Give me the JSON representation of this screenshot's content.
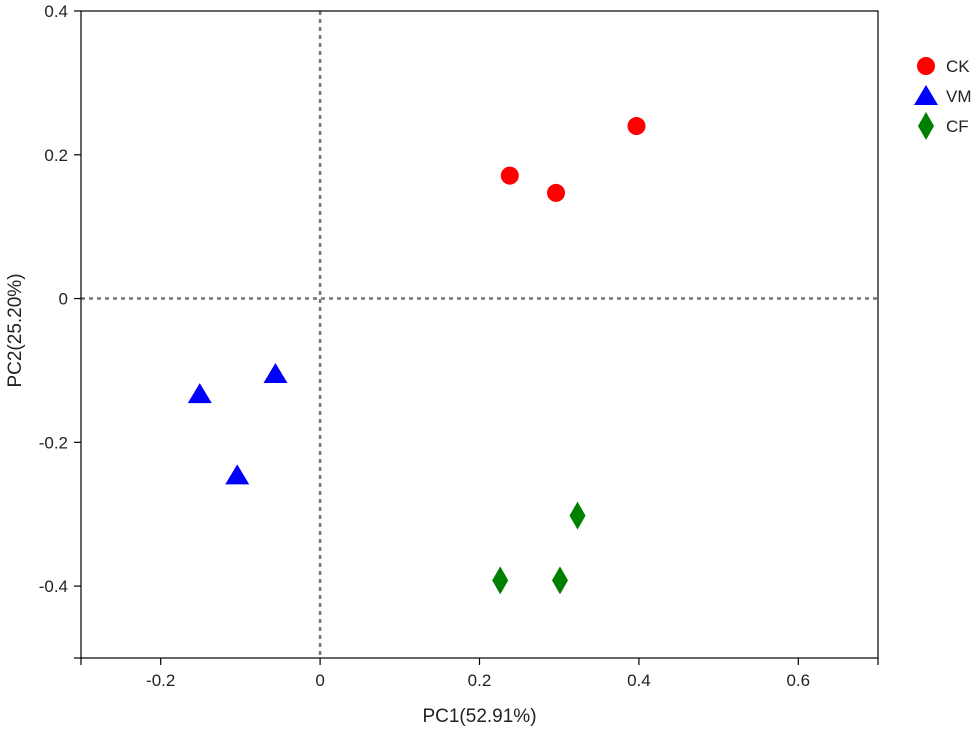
{
  "chart_data": {
    "type": "scatter",
    "title": "",
    "xlabel": "PC1(52.91%)",
    "ylabel": "PC2(25.20%)",
    "xlim": [
      -0.3,
      0.7
    ],
    "ylim": [
      -0.5,
      0.4
    ],
    "xticks": [
      {
        "value": -0.2,
        "label": "-0.2"
      },
      {
        "value": 0,
        "label": "0"
      },
      {
        "value": 0.2,
        "label": "0.2"
      },
      {
        "value": 0.4,
        "label": "0.4"
      },
      {
        "value": 0.6,
        "label": "0.6"
      }
    ],
    "yticks": [
      {
        "value": 0.4,
        "label": "0.4"
      },
      {
        "value": 0.2,
        "label": "0.2"
      },
      {
        "value": 0,
        "label": "0"
      },
      {
        "value": -0.2,
        "label": "-0.2"
      },
      {
        "value": -0.4,
        "label": "-0.4"
      }
    ],
    "reference_lines": {
      "x": 0,
      "y": 0,
      "style": "dotted"
    },
    "grid": false,
    "legend_position": "right",
    "series": [
      {
        "name": "CK",
        "marker": "circle",
        "color": "#ff0000",
        "points": [
          {
            "x": 0.238,
            "y": 0.171
          },
          {
            "x": 0.296,
            "y": 0.147
          },
          {
            "x": 0.397,
            "y": 0.24
          }
        ]
      },
      {
        "name": "VM",
        "marker": "triangle",
        "color": "#0000ff",
        "points": [
          {
            "x": -0.056,
            "y": -0.105
          },
          {
            "x": -0.151,
            "y": -0.133
          },
          {
            "x": -0.104,
            "y": -0.246
          }
        ]
      },
      {
        "name": "CF",
        "marker": "diamond",
        "color": "#008000",
        "points": [
          {
            "x": 0.323,
            "y": -0.302
          },
          {
            "x": 0.226,
            "y": -0.392
          },
          {
            "x": 0.301,
            "y": -0.392
          }
        ]
      }
    ]
  }
}
